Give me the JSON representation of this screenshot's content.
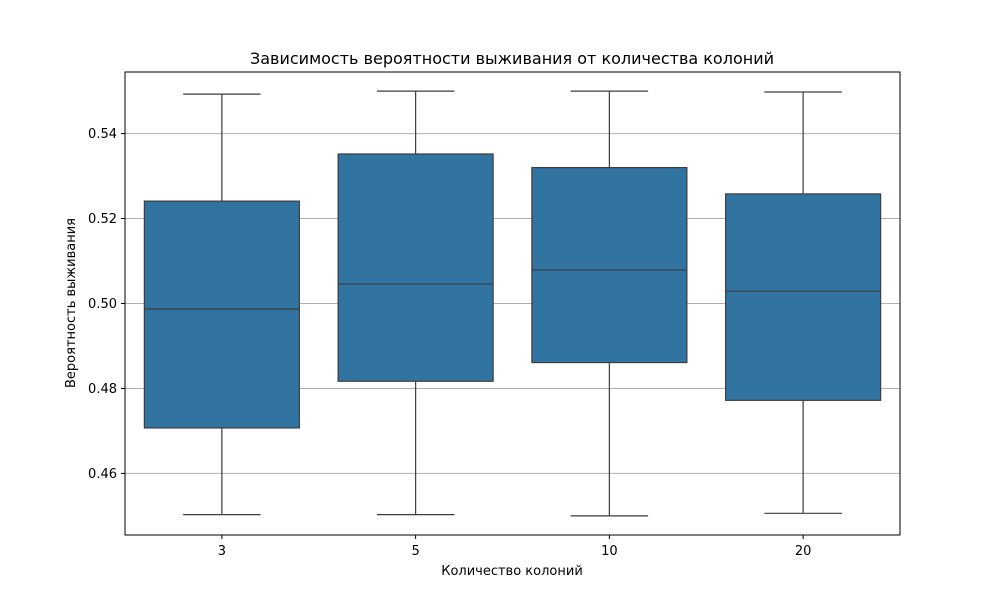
{
  "chart_data": {
    "type": "box",
    "title": "Зависимость вероятности выживания от количества колоний",
    "xlabel": "Количество колоний",
    "ylabel": "Вероятность выживания",
    "categories": [
      "3",
      "5",
      "10",
      "20"
    ],
    "boxes": [
      {
        "category": "3",
        "whisker_low": 0.4503,
        "q1": 0.4707,
        "median": 0.4987,
        "q3": 0.5241,
        "whisker_high": 0.5493
      },
      {
        "category": "5",
        "whisker_low": 0.4503,
        "q1": 0.4817,
        "median": 0.5046,
        "q3": 0.5352,
        "whisker_high": 0.55
      },
      {
        "category": "10",
        "whisker_low": 0.45,
        "q1": 0.4861,
        "median": 0.5079,
        "q3": 0.532,
        "whisker_high": 0.55
      },
      {
        "category": "20",
        "whisker_low": 0.4506,
        "q1": 0.4772,
        "median": 0.5029,
        "q3": 0.5258,
        "whisker_high": 0.5498
      }
    ],
    "ylim": [
      0.4455,
      0.5545
    ],
    "yticks": [
      0.46,
      0.48,
      0.5,
      0.52,
      0.54
    ],
    "ytick_labels": [
      "0.46",
      "0.48",
      "0.50",
      "0.52",
      "0.54"
    ],
    "grid": true,
    "box_color": "#3274a1",
    "line_color": "#3d3d3d",
    "grid_color": "#b0b0b0"
  }
}
